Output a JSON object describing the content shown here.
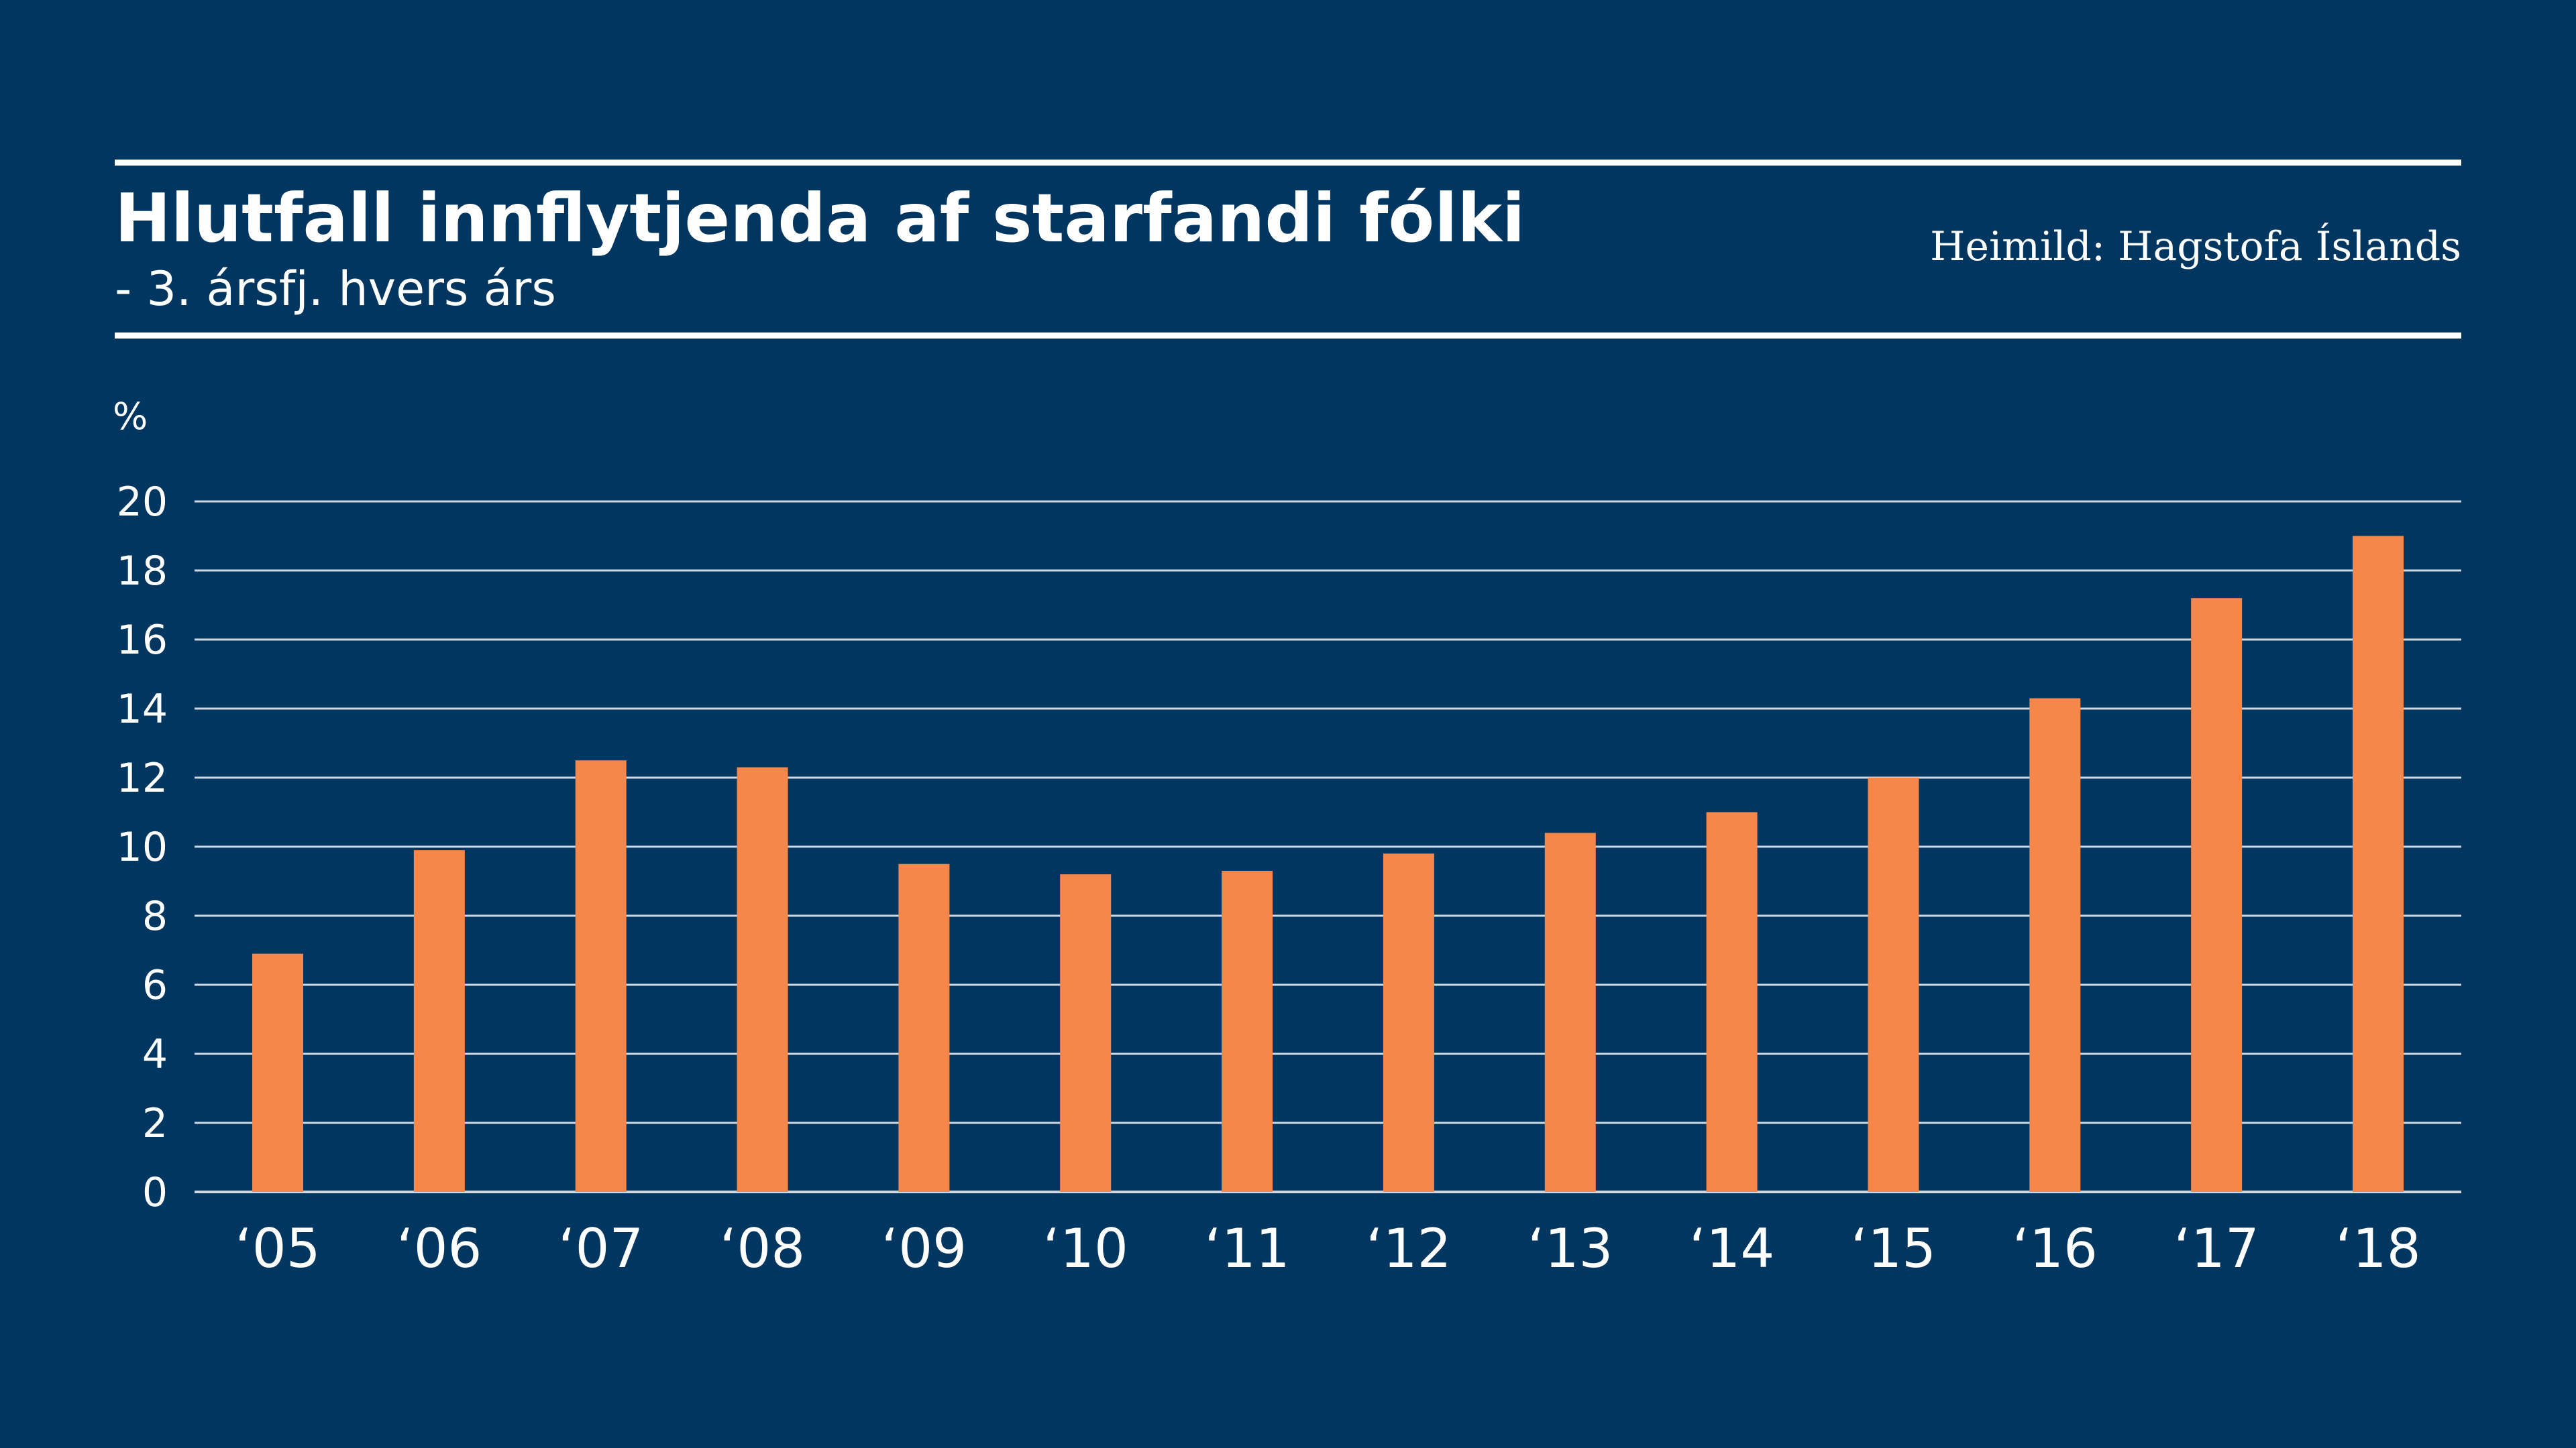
{
  "colors": {
    "background": "#003660",
    "bar": "#f5874a",
    "text": "#ffffff",
    "grid": "#cfd8e3"
  },
  "header": {
    "title": "Hlutfall innflytjenda af starfandi fólki",
    "subtitle": "- 3. ársfj. hvers árs",
    "source": "Heimild: Hagstofa Íslands"
  },
  "chart_data": {
    "type": "bar",
    "title": "Hlutfall innflytjenda af starfandi fólki",
    "subtitle": "- 3. ársfj. hvers árs",
    "unit": "%",
    "categories": [
      "‘05",
      "‘06",
      "‘07",
      "‘08",
      "‘09",
      "‘10",
      "‘11",
      "‘12",
      "‘13",
      "‘14",
      "‘15",
      "‘16",
      "‘17",
      "‘18"
    ],
    "values": [
      6.9,
      9.9,
      12.5,
      12.3,
      9.5,
      9.2,
      9.3,
      9.8,
      10.4,
      11.0,
      12.0,
      14.3,
      17.2,
      19.0
    ],
    "ylim": [
      0,
      20
    ],
    "yticks": [
      0,
      2,
      4,
      6,
      8,
      10,
      12,
      14,
      16,
      18,
      20
    ],
    "grid": true,
    "legend": "none"
  }
}
